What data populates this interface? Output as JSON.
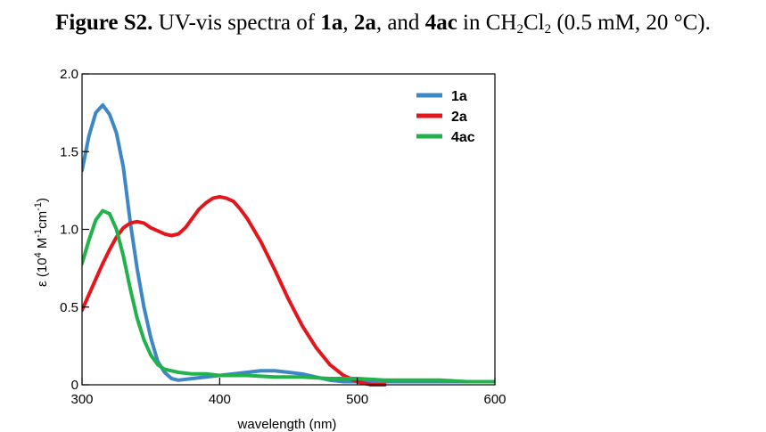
{
  "caption": {
    "label": "Figure S2.",
    "text1": " UV-vis spectra of ",
    "c1": "1a",
    "sep1": ", ",
    "c2": "2a",
    "sep2": ", and ",
    "c3": "4ac",
    "text2": " in CH",
    "sub1": "2",
    "text3": "Cl",
    "sub2": "2",
    "text4": " (0.5 mM, 20 °C)."
  },
  "chart_data": {
    "type": "line",
    "title": "",
    "xlabel": "wavelength (nm)",
    "ylabel_parts": [
      "ε (10",
      "4",
      " M",
      "-1",
      "cm",
      "-1",
      ")"
    ],
    "xlim": [
      300,
      600
    ],
    "ylim": [
      0,
      2.0
    ],
    "xticks": [
      300,
      400,
      500,
      600
    ],
    "xtick_labels": [
      "300",
      "400",
      "500",
      "600"
    ],
    "yticks": [
      0,
      0.5,
      1.0,
      1.5,
      2.0
    ],
    "ytick_labels": [
      "0",
      "0.5",
      "1.0",
      "1.5",
      "2.0"
    ],
    "grid": false,
    "legend": "top-right",
    "series": [
      {
        "name": "1a",
        "color": "#3d87c6",
        "x": [
          300,
          305,
          310,
          315,
          320,
          325,
          330,
          335,
          340,
          345,
          350,
          355,
          360,
          365,
          370,
          380,
          390,
          400,
          410,
          420,
          430,
          440,
          450,
          460,
          470,
          480,
          490,
          500,
          520,
          540,
          560,
          580,
          600
        ],
        "y": [
          1.38,
          1.6,
          1.75,
          1.8,
          1.74,
          1.62,
          1.4,
          1.05,
          0.75,
          0.5,
          0.3,
          0.15,
          0.08,
          0.04,
          0.03,
          0.04,
          0.05,
          0.06,
          0.07,
          0.08,
          0.09,
          0.09,
          0.08,
          0.07,
          0.05,
          0.03,
          0.02,
          0.02,
          0.02,
          0.02,
          0.02,
          0.02,
          0.02
        ]
      },
      {
        "name": "2a",
        "color": "#e3161c",
        "x": [
          300,
          305,
          310,
          315,
          320,
          325,
          330,
          335,
          340,
          345,
          350,
          355,
          360,
          365,
          370,
          375,
          380,
          385,
          390,
          395,
          400,
          405,
          410,
          415,
          420,
          430,
          440,
          450,
          460,
          470,
          480,
          490,
          500,
          505,
          510,
          520
        ],
        "y": [
          0.48,
          0.58,
          0.68,
          0.78,
          0.87,
          0.95,
          1.01,
          1.04,
          1.05,
          1.04,
          1.01,
          0.99,
          0.97,
          0.96,
          0.97,
          1.01,
          1.07,
          1.13,
          1.17,
          1.2,
          1.21,
          1.2,
          1.18,
          1.13,
          1.07,
          0.92,
          0.74,
          0.55,
          0.38,
          0.24,
          0.13,
          0.06,
          0.02,
          0.01,
          0.0,
          0.0
        ]
      },
      {
        "name": "4ac",
        "color": "#22b24c",
        "x": [
          300,
          305,
          310,
          315,
          320,
          325,
          330,
          335,
          340,
          345,
          350,
          355,
          360,
          365,
          370,
          380,
          390,
          400,
          420,
          440,
          460,
          480,
          500,
          520,
          540,
          560,
          580,
          600
        ],
        "y": [
          0.78,
          0.93,
          1.06,
          1.12,
          1.1,
          1.0,
          0.83,
          0.62,
          0.43,
          0.29,
          0.19,
          0.13,
          0.1,
          0.09,
          0.08,
          0.07,
          0.07,
          0.06,
          0.06,
          0.05,
          0.05,
          0.04,
          0.04,
          0.03,
          0.03,
          0.03,
          0.02,
          0.02
        ]
      }
    ]
  }
}
